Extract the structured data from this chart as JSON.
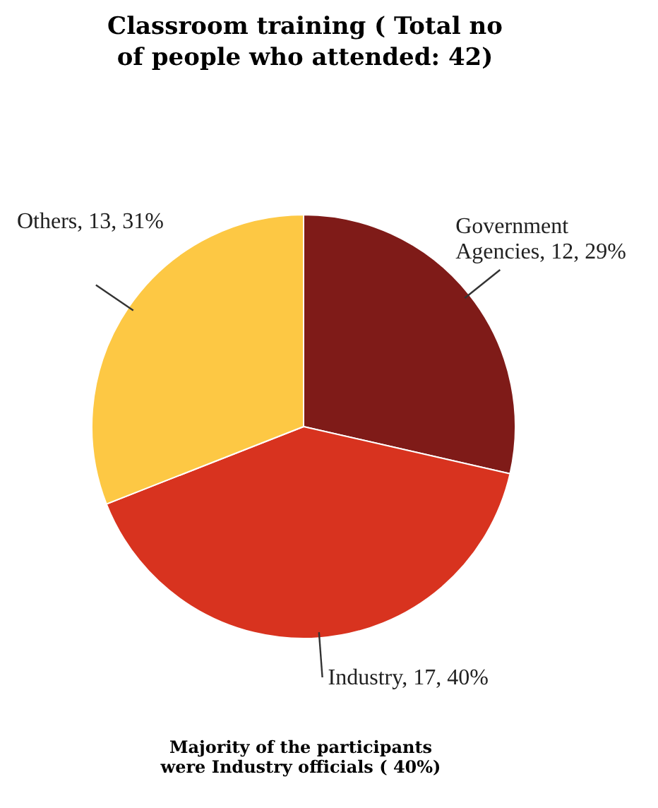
{
  "chart_data": {
    "type": "pie",
    "title": "Classroom training ( Total no of people who attended: 42)",
    "categories": [
      "Government Agencies",
      "Industry",
      "Others"
    ],
    "values": [
      12,
      17,
      13
    ],
    "value_labels": [
      "12, 29%",
      "17, 40%",
      "13, 31%"
    ],
    "colors": [
      "#7f1b18",
      "#d8331f",
      "#fdc844"
    ],
    "legend": false,
    "annotations": [
      "Majority of the participants were Industry officials ( 40%)"
    ]
  }
}
